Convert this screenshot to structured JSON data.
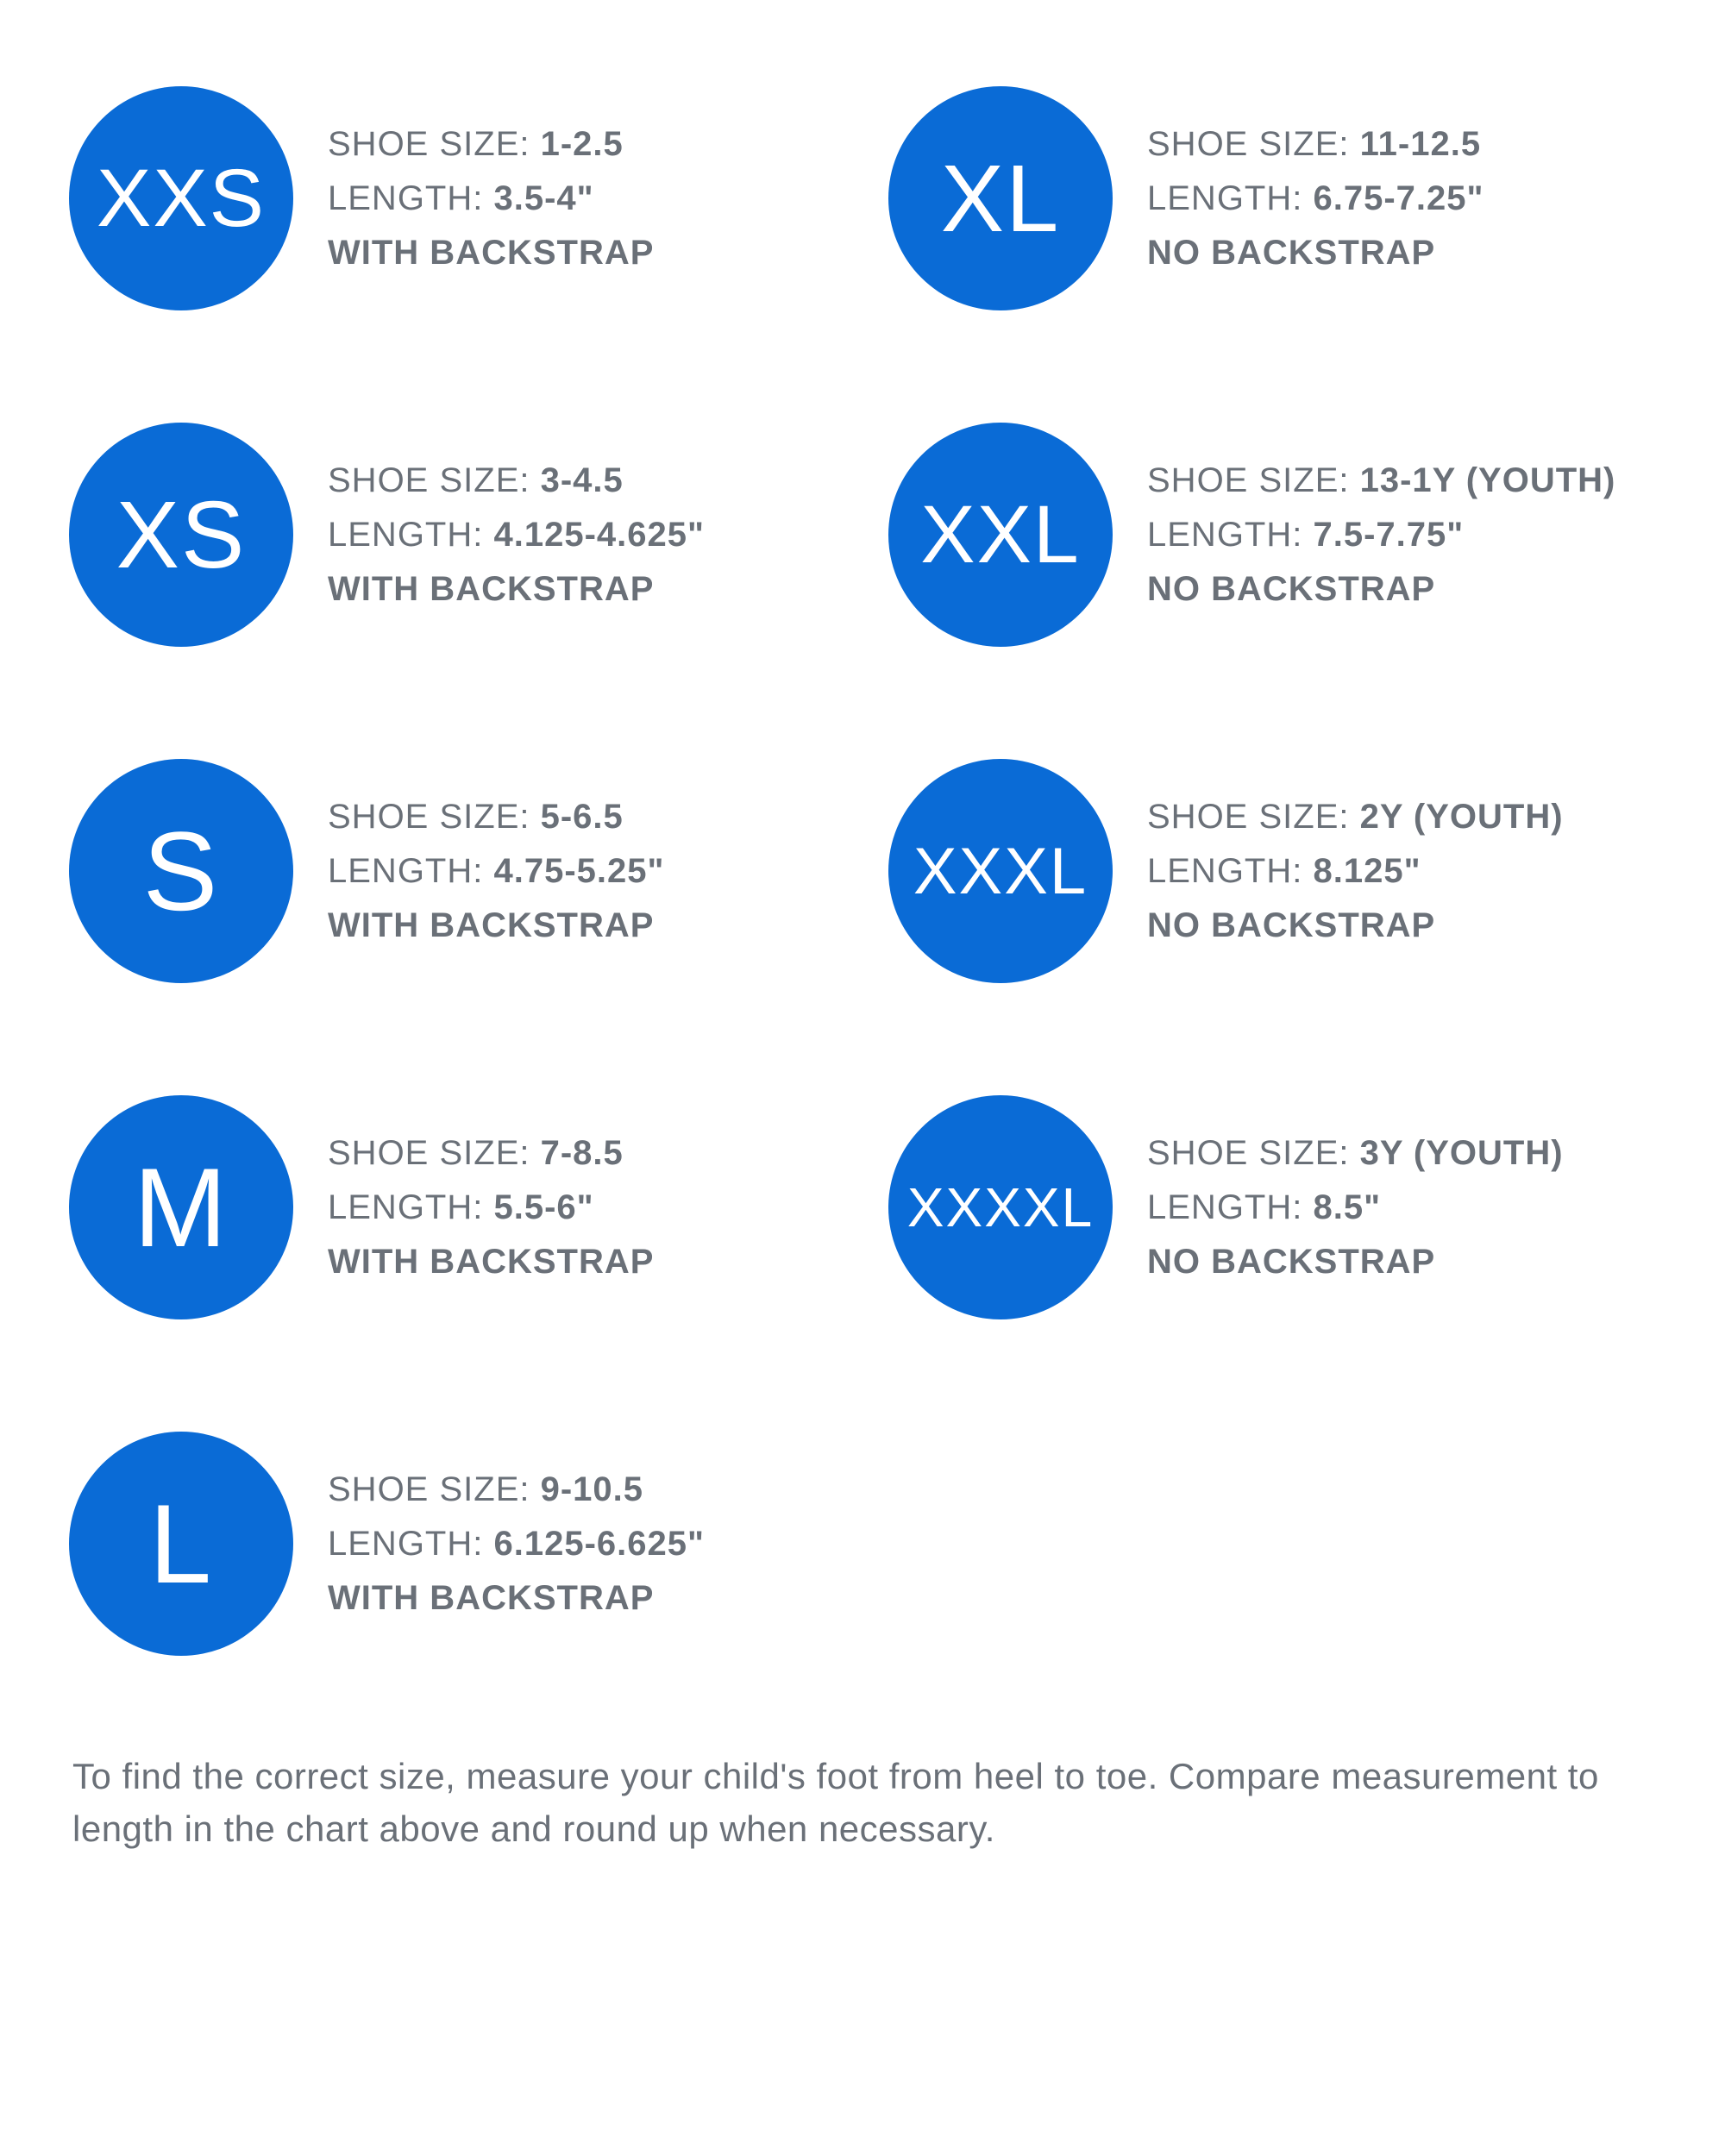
{
  "colors": {
    "circle_bg": "#0a6bd6",
    "circle_text": "#ffffff",
    "body_text": "#6a7078",
    "background": "#ffffff"
  },
  "labels": {
    "shoe_size": "SHOE SIZE: ",
    "length": "LENGTH: "
  },
  "circle_font_sizes": {
    "1": 130,
    "2": 110,
    "3": 95,
    "4": 76,
    "5": 64,
    "6": 54
  },
  "items": [
    {
      "code": "XXS",
      "shoe": "1-2.5",
      "length": "3.5-4\"",
      "strap": "WITH BACKSTRAP"
    },
    {
      "code": "XL",
      "shoe": "11-12.5",
      "length": "6.75-7.25\"",
      "strap": "NO BACKSTRAP"
    },
    {
      "code": "XS",
      "shoe": "3-4.5",
      "length": "4.125-4.625\"",
      "strap": "WITH BACKSTRAP"
    },
    {
      "code": "XXL",
      "shoe": "13-1Y (YOUTH)",
      "length": "7.5-7.75\"",
      "strap": "NO BACKSTRAP"
    },
    {
      "code": "S",
      "shoe": "5-6.5",
      "length": "4.75-5.25\"",
      "strap": "WITH BACKSTRAP"
    },
    {
      "code": "XXXL",
      "shoe": "2Y (YOUTH)",
      "length": "8.125\"",
      "strap": "NO BACKSTRAP"
    },
    {
      "code": "M",
      "shoe": "7-8.5",
      "length": "5.5-6\"",
      "strap": "WITH BACKSTRAP"
    },
    {
      "code": "XXXXL",
      "shoe": "3Y (YOUTH)",
      "length": "8.5\"",
      "strap": "NO BACKSTRAP"
    },
    {
      "code": "L",
      "shoe": "9-10.5",
      "length": "6.125-6.625\"",
      "strap": "WITH BACKSTRAP"
    }
  ],
  "footer": "To find the correct size, measure your child's foot from heel to toe. Compare measurement to length in the chart above and round up when necessary."
}
